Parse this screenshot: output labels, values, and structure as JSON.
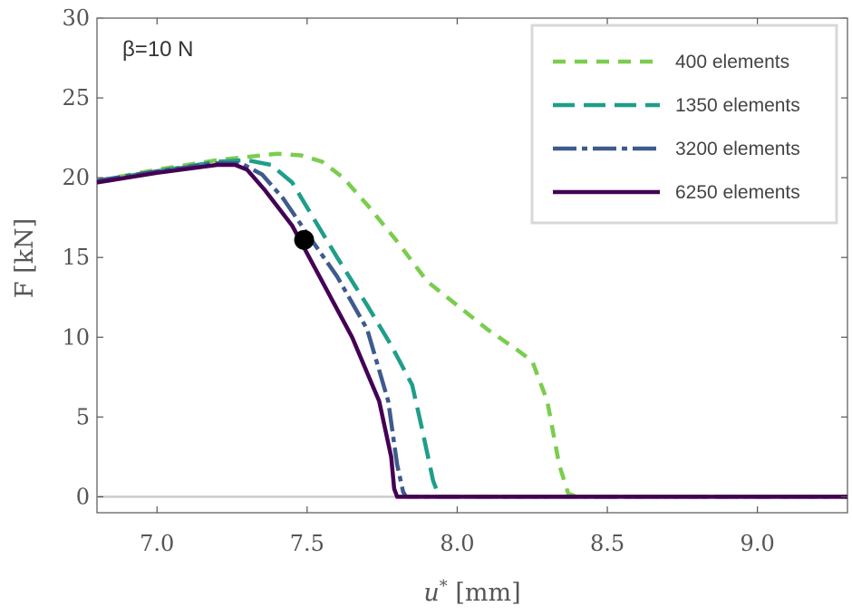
{
  "chart_data": {
    "type": "line",
    "title": "",
    "annotation": "β=10 N",
    "xlabel": "u* [mm]",
    "ylabel": "F [kN]",
    "xlim": [
      6.8,
      9.3
    ],
    "ylim": [
      -1,
      30
    ],
    "xticks": [
      7.0,
      7.5,
      8.0,
      8.5,
      9.0
    ],
    "xtick_labels": [
      "7.0",
      "7.5",
      "8.0",
      "8.5",
      "9.0"
    ],
    "yticks": [
      0,
      5,
      10,
      15,
      20,
      25,
      30
    ],
    "ytick_labels": [
      "0",
      "5",
      "10",
      "15",
      "20",
      "25",
      "30"
    ],
    "legend_position": "top-right",
    "series": [
      {
        "name": "400 elements",
        "color": "#7acd4e",
        "dash": "short-dash",
        "x": [
          6.8,
          7.0,
          7.2,
          7.3,
          7.4,
          7.48,
          7.55,
          7.62,
          7.7,
          7.8,
          7.9,
          8.0,
          8.1,
          8.2,
          8.25,
          8.3,
          8.34,
          8.37,
          8.4,
          9.3
        ],
        "y": [
          19.8,
          20.5,
          21.1,
          21.3,
          21.5,
          21.4,
          21.0,
          20.0,
          18.3,
          16.0,
          13.5,
          12.0,
          10.5,
          9.2,
          8.5,
          6.0,
          2.0,
          0.2,
          0,
          0
        ]
      },
      {
        "name": "1350 elements",
        "color": "#1f9e89",
        "dash": "long-dash",
        "x": [
          6.8,
          7.0,
          7.2,
          7.3,
          7.38,
          7.45,
          7.52,
          7.6,
          7.7,
          7.78,
          7.85,
          7.88,
          7.92,
          7.94,
          9.3
        ],
        "y": [
          19.8,
          20.4,
          21.0,
          21.1,
          20.8,
          19.7,
          17.5,
          15.0,
          12.0,
          9.5,
          7.0,
          4.5,
          1.0,
          0,
          0
        ]
      },
      {
        "name": "3200 elements",
        "color": "#3e5a8e",
        "dash": "dash-dot",
        "x": [
          6.8,
          7.0,
          7.2,
          7.28,
          7.35,
          7.42,
          7.5,
          7.6,
          7.7,
          7.77,
          7.8,
          7.82,
          7.83,
          9.3
        ],
        "y": [
          19.8,
          20.4,
          20.9,
          20.9,
          20.2,
          18.7,
          16.5,
          13.8,
          10.5,
          6.0,
          2.0,
          0.3,
          0,
          0
        ]
      },
      {
        "name": "6250 elements",
        "color": "#440154",
        "dash": "solid",
        "x": [
          6.8,
          7.0,
          7.2,
          7.26,
          7.3,
          7.36,
          7.45,
          7.55,
          7.65,
          7.74,
          7.78,
          7.79,
          7.8,
          9.3
        ],
        "y": [
          19.7,
          20.3,
          20.8,
          20.8,
          20.5,
          19.2,
          17.0,
          13.5,
          10.0,
          6.0,
          2.5,
          0.5,
          0,
          0
        ]
      }
    ],
    "marker": {
      "x": 7.49,
      "y": 16.1,
      "color": "#000000"
    },
    "baseline": {
      "y": 0,
      "color": "#cccccc"
    }
  }
}
